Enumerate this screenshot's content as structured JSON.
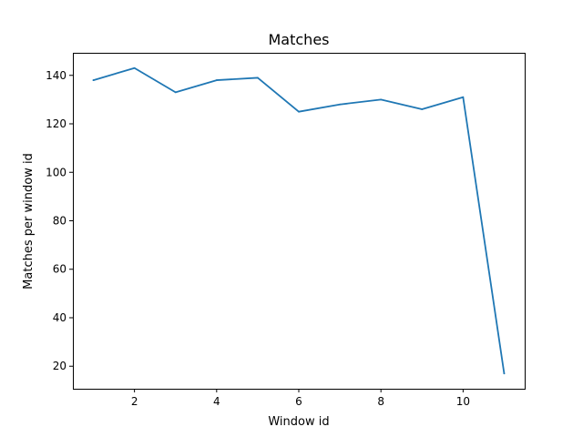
{
  "chart_data": {
    "type": "line",
    "title": "Matches",
    "xlabel": "Window id",
    "ylabel": "Matches per window id",
    "x": [
      1,
      2,
      3,
      4,
      5,
      6,
      7,
      8,
      9,
      10,
      11
    ],
    "series": [
      {
        "values": [
          138,
          143,
          133,
          138,
          139,
          125,
          128,
          130,
          126,
          131,
          17
        ],
        "color": "#1f77b4"
      }
    ],
    "xlim": [
      0.5,
      11.5
    ],
    "ylim": [
      10.7,
      149.3
    ],
    "xticks": [
      2,
      4,
      6,
      8,
      10
    ],
    "yticks": [
      20,
      40,
      60,
      80,
      100,
      120,
      140
    ],
    "grid": false
  }
}
